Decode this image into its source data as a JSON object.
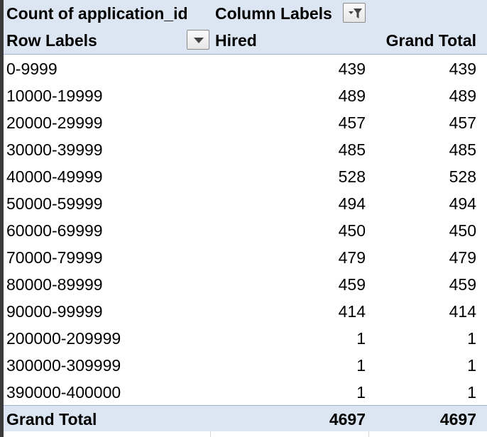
{
  "pivot": {
    "value_field": "Count of application_id",
    "column_labels": "Column Labels",
    "row_labels": "Row Labels",
    "columns": [
      "Hired",
      "Grand Total"
    ],
    "rows": [
      {
        "label": "0-9999",
        "hired": "439",
        "total": "439"
      },
      {
        "label": "10000-19999",
        "hired": "489",
        "total": "489"
      },
      {
        "label": "20000-29999",
        "hired": "457",
        "total": "457"
      },
      {
        "label": "30000-39999",
        "hired": "485",
        "total": "485"
      },
      {
        "label": "40000-49999",
        "hired": "528",
        "total": "528"
      },
      {
        "label": "50000-59999",
        "hired": "494",
        "total": "494"
      },
      {
        "label": "60000-69999",
        "hired": "450",
        "total": "450"
      },
      {
        "label": "70000-79999",
        "hired": "479",
        "total": "479"
      },
      {
        "label": "80000-89999",
        "hired": "459",
        "total": "459"
      },
      {
        "label": "90000-99999",
        "hired": "414",
        "total": "414"
      },
      {
        "label": "200000-209999",
        "hired": "1",
        "total": "1"
      },
      {
        "label": "300000-309999",
        "hired": "1",
        "total": "1"
      },
      {
        "label": "390000-400000",
        "hired": "1",
        "total": "1"
      }
    ],
    "grand_total": {
      "label": "Grand Total",
      "hired": "4697",
      "total": "4697"
    }
  },
  "colors": {
    "header_fill": "#dce6f2",
    "separator": "#9bb7d6"
  },
  "icons": {
    "column_filter": "filter-dropdown-icon",
    "row_filter": "dropdown-arrow-icon"
  }
}
